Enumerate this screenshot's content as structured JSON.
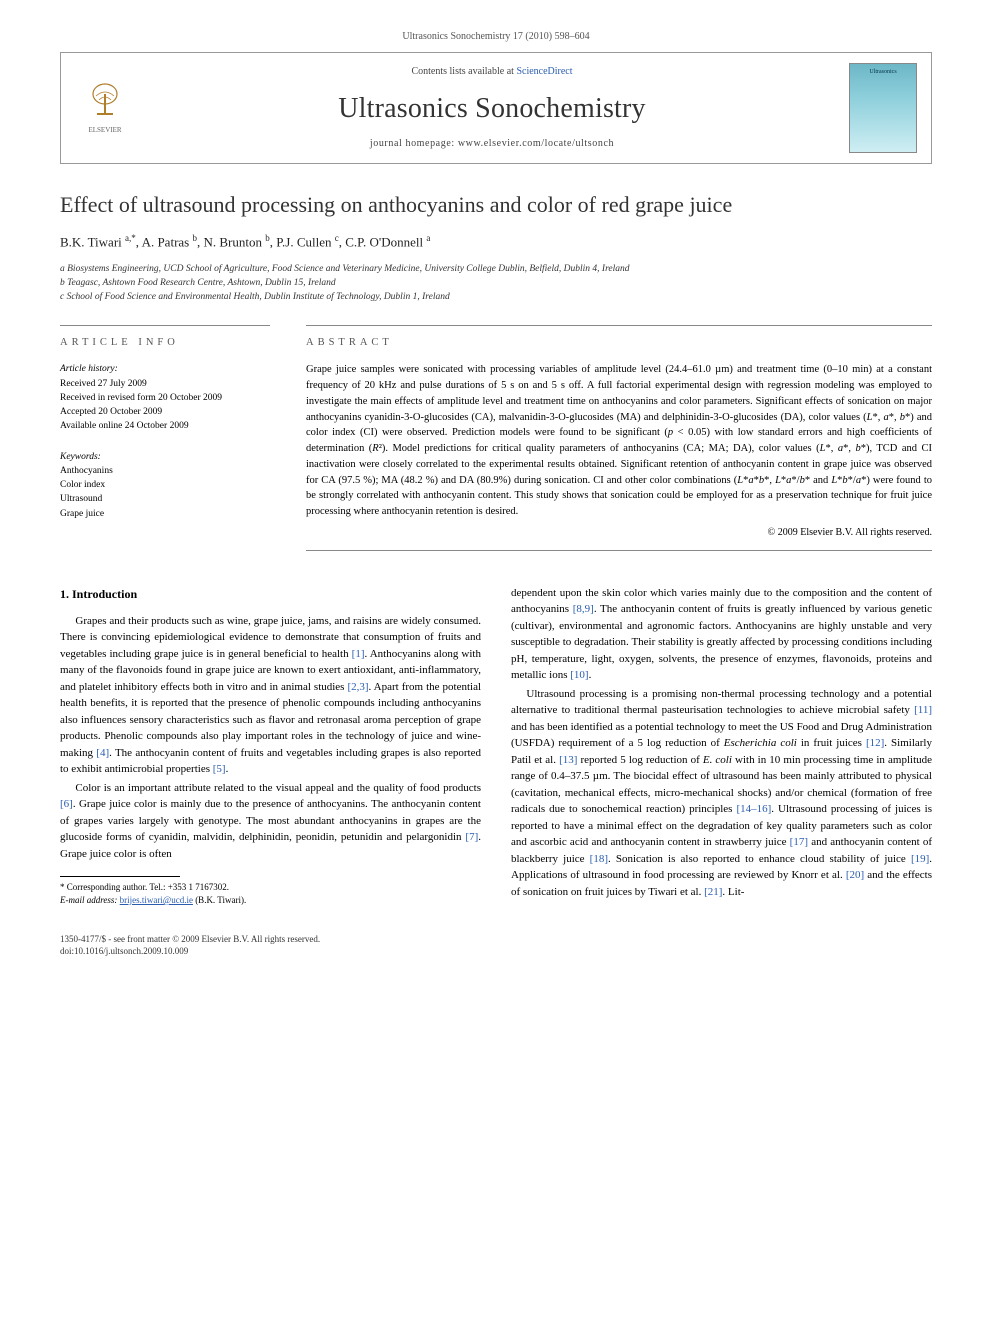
{
  "page_header": "Ultrasonics Sonochemistry 17 (2010) 598–604",
  "masthead": {
    "contents_prefix": "Contents lists available at ",
    "contents_link": "ScienceDirect",
    "journal": "Ultrasonics Sonochemistry",
    "homepage_prefix": "journal homepage: ",
    "homepage": "www.elsevier.com/locate/ultsonch",
    "publisher_logo_label": "ELSEVIER",
    "cover_label": "Ultrasonics"
  },
  "article": {
    "title": "Effect of ultrasound processing on anthocyanins and color of red grape juice",
    "authors_html": "B.K. Tiwari <sup>a,*</sup>, A. Patras <sup>b</sup>, N. Brunton <sup>b</sup>, P.J. Cullen <sup>c</sup>, C.P. O'Donnell <sup>a</sup>",
    "affiliations": [
      "a Biosystems Engineering, UCD School of Agriculture, Food Science and Veterinary Medicine, University College Dublin, Belfield, Dublin 4, Ireland",
      "b Teagasc, Ashtown Food Research Centre, Ashtown, Dublin 15, Ireland",
      "c School of Food Science and Environmental Health, Dublin Institute of Technology, Dublin 1, Ireland"
    ]
  },
  "info": {
    "heading": "article info",
    "history_label": "Article history:",
    "history": [
      "Received 27 July 2009",
      "Received in revised form 20 October 2009",
      "Accepted 20 October 2009",
      "Available online 24 October 2009"
    ],
    "keywords_label": "Keywords:",
    "keywords": [
      "Anthocyanins",
      "Color index",
      "Ultrasound",
      "Grape juice"
    ]
  },
  "abstract": {
    "heading": "abstract",
    "text": "Grape juice samples were sonicated with processing variables of amplitude level (24.4–61.0 µm) and treatment time (0–10 min) at a constant frequency of 20 kHz and pulse durations of 5 s on and 5 s off. A full factorial experimental design with regression modeling was employed to investigate the main effects of amplitude level and treatment time on anthocyanins and color parameters. Significant effects of sonication on major anthocyanins cyanidin-3-O-glucosides (CA), malvanidin-3-O-glucosides (MA) and delphinidin-3-O-glucosides (DA), color values (L*, a*, b*) and color index (CI) were observed. Prediction models were found to be significant (p < 0.05) with low standard errors and high coefficients of determination (R²). Model predictions for critical quality parameters of anthocyanins (CA; MA; DA), color values (L*, a*, b*), TCD and CI inactivation were closely correlated to the experimental results obtained. Significant retention of anthocyanin content in grape juice was observed for CA (97.5 %); MA (48.2 %) and DA (80.9%) during sonication. CI and other color combinations (L*a*b*, L*a*/b* and L*b*/a*) were found to be strongly correlated with anthocyanin content. This study shows that sonication could be employed for as a preservation technique for fruit juice processing where anthocyanin retention is desired.",
    "copyright": "© 2009 Elsevier B.V. All rights reserved."
  },
  "body": {
    "section_heading": "1. Introduction",
    "col1_p1": "Grapes and their products such as wine, grape juice, jams, and raisins are widely consumed. There is convincing epidemiological evidence to demonstrate that consumption of fruits and vegetables including grape juice is in general beneficial to health [1]. Anthocyanins along with many of the flavonoids found in grape juice are known to exert antioxidant, anti-inflammatory, and platelet inhibitory effects both in vitro and in animal studies [2,3]. Apart from the potential health benefits, it is reported that the presence of phenolic compounds including anthocyanins also influences sensory characteristics such as flavor and retronasal aroma perception of grape products. Phenolic compounds also play important roles in the technology of juice and wine-making [4]. The anthocyanin content of fruits and vegetables including grapes is also reported to exhibit antimicrobial properties [5].",
    "col1_p2": "Color is an important attribute related to the visual appeal and the quality of food products [6]. Grape juice color is mainly due to the presence of anthocyanins. The anthocyanin content of grapes varies largely with genotype. The most abundant anthocyanins in grapes are the glucoside forms of cyanidin, malvidin, delphinidin, peonidin, petunidin and pelargonidin [7]. Grape juice color is often",
    "col2_p1": "dependent upon the skin color which varies mainly due to the composition and the content of anthocyanins [8,9]. The anthocyanin content of fruits is greatly influenced by various genetic (cultivar), environmental and agronomic factors. Anthocyanins are highly unstable and very susceptible to degradation. Their stability is greatly affected by processing conditions including pH, temperature, light, oxygen, solvents, the presence of enzymes, flavonoids, proteins and metallic ions [10].",
    "col2_p2": "Ultrasound processing is a promising non-thermal processing technology and a potential alternative to traditional thermal pasteurisation technologies to achieve microbial safety [11] and has been identified as a potential technology to meet the US Food and Drug Administration (USFDA) requirement of a 5 log reduction of Escherichia coli in fruit juices [12]. Similarly Patil et al. [13] reported 5 log reduction of E. coli with in 10 min processing time in amplitude range of 0.4–37.5 µm. The biocidal effect of ultrasound has been mainly attributed to physical (cavitation, mechanical effects, micro-mechanical shocks) and/or chemical (formation of free radicals due to sonochemical reaction) principles [14–16]. Ultrasound processing of juices is reported to have a minimal effect on the degradation of key quality parameters such as color and ascorbic acid and anthocyanin content in strawberry juice [17] and anthocyanin content of blackberry juice [18]. Sonication is also reported to enhance cloud stability of juice [19]. Applications of ultrasound in food processing are reviewed by Knorr et al. [20] and the effects of sonication on fruit juices by Tiwari et al. [21]. Lit-"
  },
  "footnotes": {
    "corr": "* Corresponding author. Tel.: +353 1 7167302.",
    "email_label": "E-mail address:",
    "email": "brijes.tiwari@ucd.ie",
    "email_who": "(B.K. Tiwari)."
  },
  "footer": {
    "left_line1": "1350-4177/$ - see front matter © 2009 Elsevier B.V. All rights reserved.",
    "left_line2": "doi:10.1016/j.ultsonch.2009.10.009"
  },
  "colors": {
    "link": "#2a5db0",
    "rule": "#888888",
    "text": "#000000",
    "muted": "#555555",
    "background": "#ffffff"
  },
  "typography": {
    "body_pt": 11,
    "abstract_pt": 10.5,
    "title_pt": 22,
    "journal_pt": 28,
    "small_pt": 9.5
  }
}
